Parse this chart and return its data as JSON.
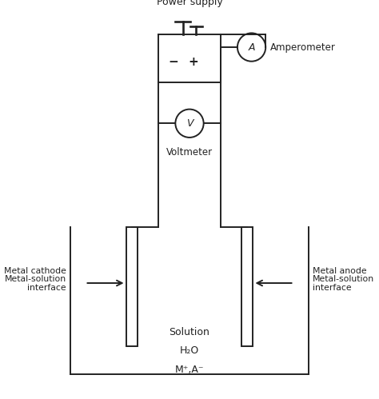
{
  "bg_color": "#ffffff",
  "line_color": "#222222",
  "title": "Power supply",
  "amperometer_label": "A",
  "amperometer_text": "Amperometer",
  "voltmeter_label": "V",
  "voltmeter_text": "Voltmeter",
  "solution_line1": "Solution",
  "solution_line2": "H₂O",
  "solution_line3": "M⁺,A⁻",
  "cathode_line1": "Metal cathode",
  "cathode_line2": "Metal-solution",
  "cathode_line3": "interface",
  "anode_line1": "Metal anode",
  "anode_line2": "Metal-solution",
  "anode_line3": "interface",
  "minus_label": "−",
  "plus_label": "+",
  "figsize": [
    4.74,
    4.99
  ],
  "dpi": 100,
  "lw": 1.4,
  "xlim": [
    0,
    10
  ],
  "ylim": [
    0,
    10.5
  ]
}
